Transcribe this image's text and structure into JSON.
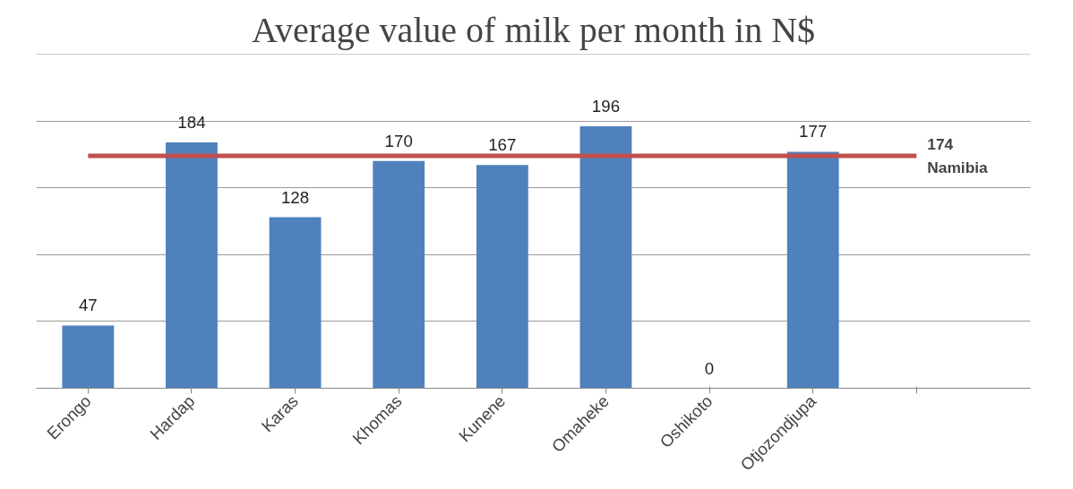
{
  "chart_data": {
    "type": "bar",
    "title": "Average value of milk per month in N$",
    "categories": [
      "Erongo",
      "Hardap",
      "Karas",
      "Khomas",
      "Kunene",
      "Omaheke",
      "Oshikoto",
      "Otjozondjupa",
      null
    ],
    "values": [
      47,
      184,
      128,
      170,
      167,
      196,
      0,
      177,
      null
    ],
    "color": "#4f81bd",
    "data_labels": true,
    "ylim": [
      0,
      250
    ],
    "yticks": [
      {
        "value": 0,
        "label": null
      },
      {
        "value": 50,
        "label": null
      },
      {
        "value": 100,
        "label": null
      },
      {
        "value": 150,
        "label": null
      },
      {
        "value": 200,
        "label": null
      },
      {
        "value": 250,
        "label": null
      }
    ],
    "tick_labels": "x",
    "grid": "y",
    "ref_lines": [
      {
        "axis": "y",
        "value": 174,
        "label": "174\nNamibia",
        "color": "#c0504d"
      }
    ]
  }
}
